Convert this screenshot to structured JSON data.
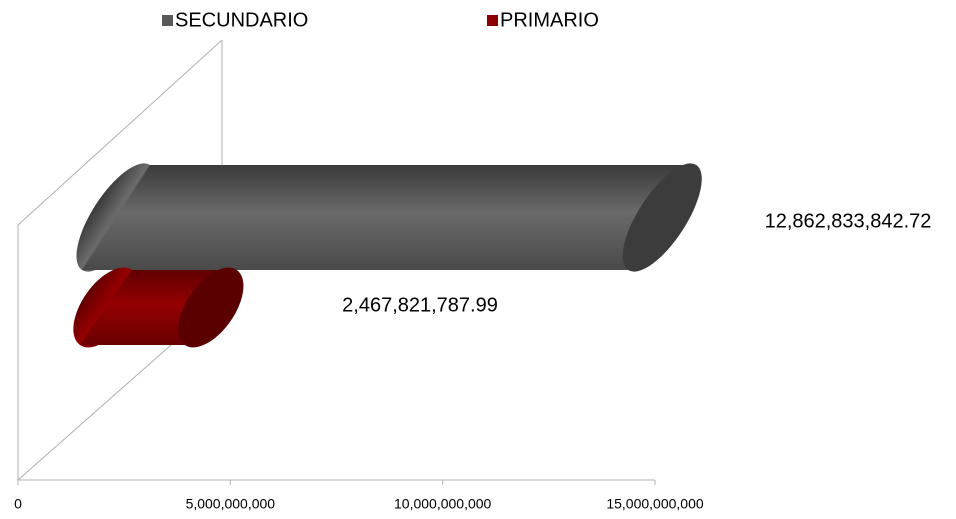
{
  "chart_data": {
    "type": "bar3d",
    "categories": [
      null
    ],
    "series": [
      {
        "name": "SECUNDARIO",
        "color": "#595959",
        "values": [
          12862833842.72
        ],
        "value_labels": [
          "12,862,833,842.72"
        ]
      },
      {
        "name": "PRIMARIO",
        "color": "#8B0000",
        "values": [
          2467821787.99
        ],
        "value_labels": [
          "2,467,821,787.99"
        ]
      }
    ],
    "xlim": [
      0,
      15000000000
    ],
    "xticks": [
      0,
      {
        "value": 5000000000,
        "label": "5,000,000,000"
      },
      {
        "value": 10000000000,
        "label": "10,000,000,000"
      },
      {
        "value": 15000000000,
        "label": "15,000,000,000"
      }
    ],
    "legend": "top"
  }
}
